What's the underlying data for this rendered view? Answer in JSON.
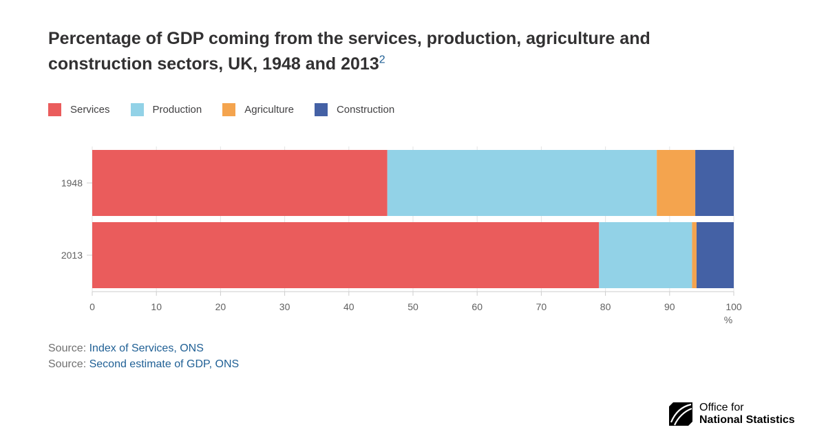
{
  "title": "Percentage of GDP coming from the services, production, agriculture and construction sectors, UK, 1948 and 2013",
  "title_footnote": "2",
  "chart_data": {
    "type": "bar",
    "orientation": "horizontal",
    "stacked": true,
    "categories": [
      "1948",
      "2013"
    ],
    "series": [
      {
        "name": "Services",
        "color": "#ea5c5c",
        "values": [
          46,
          79
        ]
      },
      {
        "name": "Production",
        "color": "#92d2e7",
        "values": [
          42,
          14.5
        ]
      },
      {
        "name": "Agriculture",
        "color": "#f4a44e",
        "values": [
          6,
          0.7
        ]
      },
      {
        "name": "Construction",
        "color": "#4461a5",
        "values": [
          6,
          5.8
        ]
      }
    ],
    "xlim": [
      0,
      100
    ],
    "xticks": [
      "0",
      "10",
      "20",
      "30",
      "40",
      "50",
      "60",
      "70",
      "80",
      "90",
      "100"
    ],
    "xunit": "%",
    "grid": true,
    "legend_position": "top-left"
  },
  "sources": [
    {
      "prefix": "Source: ",
      "link": "Index of Services, ONS"
    },
    {
      "prefix": "Source: ",
      "link": "Second estimate of GDP, ONS"
    }
  ],
  "logo": {
    "line1": "Office for",
    "line2": "National Statistics"
  }
}
